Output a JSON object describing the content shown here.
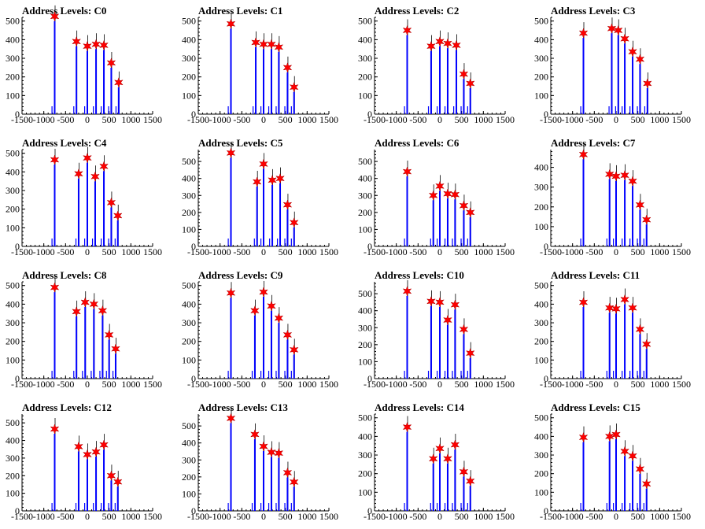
{
  "colors": {
    "histogram": "#0000ff",
    "star": "#ff0000",
    "axis": "#000000",
    "background": "#ffffff"
  },
  "chart_data": [
    {
      "type": "bar",
      "title": "Address Levels: C0",
      "xlim": [
        -1500,
        1500
      ],
      "ylim": [
        0,
        520
      ],
      "yticks": [
        0,
        100,
        200,
        300,
        400,
        500
      ],
      "xticks": [
        -1500,
        -1000,
        -500,
        0,
        500,
        1000,
        1500
      ],
      "peaks": [
        {
          "x": -750,
          "y": 525
        },
        {
          "x": -250,
          "y": 390
        },
        {
          "x": 0,
          "y": 365
        },
        {
          "x": 200,
          "y": 375
        },
        {
          "x": 380,
          "y": 370
        },
        {
          "x": 550,
          "y": 275
        },
        {
          "x": 720,
          "y": 170
        }
      ]
    },
    {
      "type": "bar",
      "title": "Address Levels: C1",
      "xlim": [
        -1500,
        1500
      ],
      "ylim": [
        0,
        520
      ],
      "yticks": [
        0,
        100,
        200,
        300,
        400,
        500
      ],
      "xticks": [
        -1500,
        -1000,
        -500,
        0,
        500,
        1000,
        1500
      ],
      "peaks": [
        {
          "x": -750,
          "y": 485
        },
        {
          "x": -180,
          "y": 385
        },
        {
          "x": 0,
          "y": 375
        },
        {
          "x": 180,
          "y": 375
        },
        {
          "x": 350,
          "y": 360
        },
        {
          "x": 550,
          "y": 250
        },
        {
          "x": 700,
          "y": 145
        }
      ]
    },
    {
      "type": "bar",
      "title": "Address Levels: C2",
      "xlim": [
        -1500,
        1500
      ],
      "ylim": [
        0,
        520
      ],
      "yticks": [
        0,
        100,
        200,
        300,
        400,
        500
      ],
      "xticks": [
        -1500,
        -1000,
        -500,
        0,
        500,
        1000,
        1500
      ],
      "peaks": [
        {
          "x": -750,
          "y": 450
        },
        {
          "x": -200,
          "y": 365
        },
        {
          "x": 0,
          "y": 390
        },
        {
          "x": 180,
          "y": 380
        },
        {
          "x": 380,
          "y": 370
        },
        {
          "x": 550,
          "y": 215
        },
        {
          "x": 700,
          "y": 165
        }
      ]
    },
    {
      "type": "bar",
      "title": "Address Levels: C3",
      "xlim": [
        -1500,
        1500
      ],
      "ylim": [
        0,
        520
      ],
      "yticks": [
        0,
        100,
        200,
        300,
        400,
        500
      ],
      "xticks": [
        -1500,
        -1000,
        -500,
        0,
        500,
        1000,
        1500
      ],
      "peaks": [
        {
          "x": -750,
          "y": 435
        },
        {
          "x": -100,
          "y": 460
        },
        {
          "x": 50,
          "y": 450
        },
        {
          "x": 200,
          "y": 405
        },
        {
          "x": 380,
          "y": 335
        },
        {
          "x": 550,
          "y": 295
        },
        {
          "x": 720,
          "y": 165
        }
      ]
    },
    {
      "type": "bar",
      "title": "Address Levels: C4",
      "xlim": [
        -1500,
        1500
      ],
      "ylim": [
        0,
        520
      ],
      "yticks": [
        0,
        100,
        200,
        300,
        400,
        500
      ],
      "xticks": [
        -1500,
        -1000,
        -500,
        0,
        500,
        1000,
        1500
      ],
      "peaks": [
        {
          "x": -750,
          "y": 465
        },
        {
          "x": -200,
          "y": 390
        },
        {
          "x": 0,
          "y": 475
        },
        {
          "x": 180,
          "y": 375
        },
        {
          "x": 380,
          "y": 430
        },
        {
          "x": 550,
          "y": 235
        },
        {
          "x": 700,
          "y": 165
        }
      ]
    },
    {
      "type": "bar",
      "title": "Address Levels: C5",
      "xlim": [
        -1500,
        1500
      ],
      "ylim": [
        0,
        570
      ],
      "yticks": [
        0,
        100,
        200,
        300,
        400,
        500
      ],
      "xticks": [
        -1500,
        -1000,
        -500,
        0,
        500,
        1000,
        1500
      ],
      "peaks": [
        {
          "x": -750,
          "y": 550
        },
        {
          "x": -150,
          "y": 380
        },
        {
          "x": 0,
          "y": 485
        },
        {
          "x": 200,
          "y": 390
        },
        {
          "x": 380,
          "y": 400
        },
        {
          "x": 550,
          "y": 245
        },
        {
          "x": 700,
          "y": 140
        }
      ]
    },
    {
      "type": "bar",
      "title": "Address Levels: C6",
      "xlim": [
        -1500,
        1500
      ],
      "ylim": [
        0,
        570
      ],
      "yticks": [
        0,
        100,
        200,
        300,
        400,
        500
      ],
      "xticks": [
        -1500,
        -1000,
        -500,
        0,
        500,
        1000,
        1500
      ],
      "peaks": [
        {
          "x": -750,
          "y": 440
        },
        {
          "x": -150,
          "y": 300
        },
        {
          "x": 0,
          "y": 355
        },
        {
          "x": 180,
          "y": 310
        },
        {
          "x": 350,
          "y": 305
        },
        {
          "x": 550,
          "y": 240
        },
        {
          "x": 700,
          "y": 200
        }
      ]
    },
    {
      "type": "bar",
      "title": "Address Levels: C7",
      "xlim": [
        -1500,
        1500
      ],
      "ylim": [
        0,
        490
      ],
      "yticks": [
        0,
        100,
        200,
        300,
        400
      ],
      "xticks": [
        -1500,
        -1000,
        -500,
        0,
        500,
        1000,
        1500
      ],
      "peaks": [
        {
          "x": -750,
          "y": 465
        },
        {
          "x": -150,
          "y": 365
        },
        {
          "x": 0,
          "y": 355
        },
        {
          "x": 200,
          "y": 360
        },
        {
          "x": 380,
          "y": 330
        },
        {
          "x": 550,
          "y": 210
        },
        {
          "x": 700,
          "y": 135
        }
      ]
    },
    {
      "type": "bar",
      "title": "Address Levels: C8",
      "xlim": [
        -1500,
        1500
      ],
      "ylim": [
        0,
        520
      ],
      "yticks": [
        0,
        100,
        200,
        300,
        400,
        500
      ],
      "xticks": [
        -1500,
        -1000,
        -500,
        0,
        500,
        1000,
        1500
      ],
      "peaks": [
        {
          "x": -750,
          "y": 490
        },
        {
          "x": -250,
          "y": 360
        },
        {
          "x": -50,
          "y": 410
        },
        {
          "x": 150,
          "y": 400
        },
        {
          "x": 350,
          "y": 365
        },
        {
          "x": 500,
          "y": 235
        },
        {
          "x": 650,
          "y": 160
        }
      ]
    },
    {
      "type": "bar",
      "title": "Address Levels: C9",
      "xlim": [
        -1500,
        1500
      ],
      "ylim": [
        0,
        520
      ],
      "yticks": [
        0,
        100,
        200,
        300,
        400,
        500
      ],
      "xticks": [
        -1500,
        -1000,
        -500,
        0,
        500,
        1000,
        1500
      ],
      "peaks": [
        {
          "x": -750,
          "y": 460
        },
        {
          "x": -200,
          "y": 365
        },
        {
          "x": 0,
          "y": 465
        },
        {
          "x": 180,
          "y": 390
        },
        {
          "x": 350,
          "y": 325
        },
        {
          "x": 550,
          "y": 235
        },
        {
          "x": 700,
          "y": 155
        }
      ]
    },
    {
      "type": "bar",
      "title": "Address Levels: C10",
      "xlim": [
        -1500,
        1500
      ],
      "ylim": [
        0,
        570
      ],
      "yticks": [
        0,
        100,
        200,
        300,
        400,
        500
      ],
      "xticks": [
        -1500,
        -1000,
        -500,
        0,
        500,
        1000,
        1500
      ],
      "peaks": [
        {
          "x": -750,
          "y": 515
        },
        {
          "x": -200,
          "y": 455
        },
        {
          "x": 0,
          "y": 450
        },
        {
          "x": 180,
          "y": 345
        },
        {
          "x": 350,
          "y": 435
        },
        {
          "x": 550,
          "y": 290
        },
        {
          "x": 700,
          "y": 150
        }
      ]
    },
    {
      "type": "bar",
      "title": "Address Levels: C11",
      "xlim": [
        -1500,
        1500
      ],
      "ylim": [
        0,
        520
      ],
      "yticks": [
        0,
        100,
        200,
        300,
        400,
        500
      ],
      "xticks": [
        -1500,
        -1000,
        -500,
        0,
        500,
        1000,
        1500
      ],
      "peaks": [
        {
          "x": -750,
          "y": 410
        },
        {
          "x": -150,
          "y": 380
        },
        {
          "x": 0,
          "y": 375
        },
        {
          "x": 200,
          "y": 425
        },
        {
          "x": 380,
          "y": 380
        },
        {
          "x": 550,
          "y": 265
        },
        {
          "x": 700,
          "y": 185
        }
      ]
    },
    {
      "type": "bar",
      "title": "Address Levels: C12",
      "xlim": [
        -1500,
        1500
      ],
      "ylim": [
        0,
        550
      ],
      "yticks": [
        0,
        100,
        200,
        300,
        400,
        500
      ],
      "xticks": [
        -1500,
        -1000,
        -500,
        0,
        500,
        1000,
        1500
      ],
      "peaks": [
        {
          "x": -750,
          "y": 465
        },
        {
          "x": -200,
          "y": 365
        },
        {
          "x": 0,
          "y": 320
        },
        {
          "x": 200,
          "y": 335
        },
        {
          "x": 380,
          "y": 375
        },
        {
          "x": 550,
          "y": 200
        },
        {
          "x": 700,
          "y": 165
        }
      ]
    },
    {
      "type": "bar",
      "title": "Address Levels: C13",
      "xlim": [
        -1500,
        1500
      ],
      "ylim": [
        0,
        570
      ],
      "yticks": [
        0,
        100,
        200,
        300,
        400,
        500
      ],
      "xticks": [
        -1500,
        -1000,
        -500,
        0,
        500,
        1000,
        1500
      ],
      "peaks": [
        {
          "x": -750,
          "y": 545
        },
        {
          "x": -200,
          "y": 450
        },
        {
          "x": 0,
          "y": 380
        },
        {
          "x": 180,
          "y": 345
        },
        {
          "x": 350,
          "y": 340
        },
        {
          "x": 550,
          "y": 225
        },
        {
          "x": 700,
          "y": 170
        }
      ]
    },
    {
      "type": "bar",
      "title": "Address Levels: C14",
      "xlim": [
        -1500,
        1500
      ],
      "ylim": [
        0,
        520
      ],
      "yticks": [
        0,
        100,
        200,
        300,
        400,
        500
      ],
      "xticks": [
        -1500,
        -1000,
        -500,
        0,
        500,
        1000,
        1500
      ],
      "peaks": [
        {
          "x": -750,
          "y": 450
        },
        {
          "x": -150,
          "y": 280
        },
        {
          "x": 0,
          "y": 335
        },
        {
          "x": 180,
          "y": 280
        },
        {
          "x": 350,
          "y": 355
        },
        {
          "x": 550,
          "y": 210
        },
        {
          "x": 700,
          "y": 160
        }
      ]
    },
    {
      "type": "bar",
      "title": "Address Levels: C15",
      "xlim": [
        -1500,
        1500
      ],
      "ylim": [
        0,
        520
      ],
      "yticks": [
        0,
        100,
        200,
        300,
        400,
        500
      ],
      "xticks": [
        -1500,
        -1000,
        -500,
        0,
        500,
        1000,
        1500
      ],
      "peaks": [
        {
          "x": -750,
          "y": 395
        },
        {
          "x": -150,
          "y": 400
        },
        {
          "x": 0,
          "y": 410
        },
        {
          "x": 200,
          "y": 320
        },
        {
          "x": 380,
          "y": 295
        },
        {
          "x": 550,
          "y": 225
        },
        {
          "x": 700,
          "y": 145
        }
      ]
    }
  ]
}
